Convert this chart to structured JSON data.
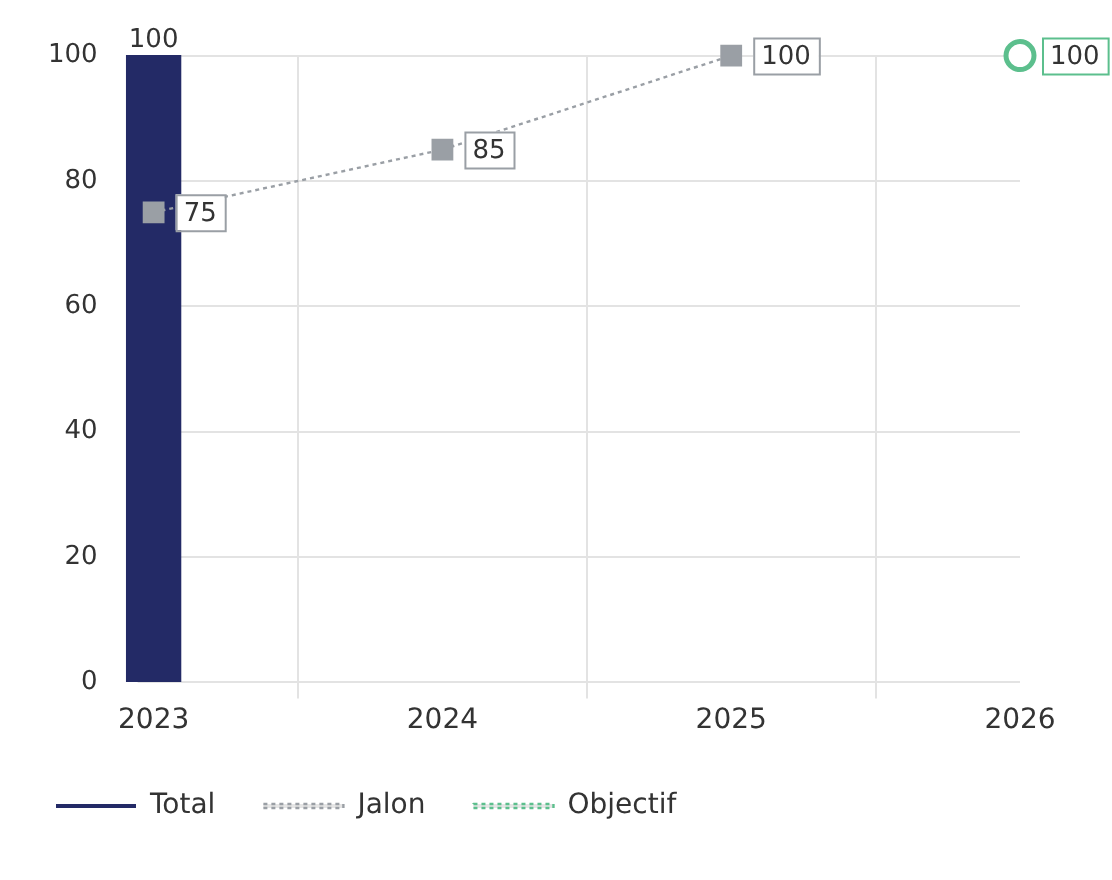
{
  "chart_data": {
    "type": "bar",
    "categories": [
      "2023",
      "2024",
      "2025",
      "2026"
    ],
    "series": [
      {
        "name": "Total",
        "color": "#232a66",
        "values": [
          100,
          null,
          null,
          null
        ]
      },
      {
        "name": "Jalon",
        "type": "line",
        "color": "#9a9fa5",
        "marker": "square",
        "line_style": "dotted",
        "values": [
          75,
          85,
          100,
          null
        ]
      },
      {
        "name": "Objectif",
        "type": "line",
        "color": "#5cbf8d",
        "marker": "circle",
        "line_style": "dotted",
        "values": [
          null,
          null,
          null,
          100
        ]
      }
    ],
    "ylim": [
      0,
      100
    ],
    "yticks": [
      0,
      20,
      40,
      60,
      80,
      100
    ],
    "grid": true,
    "legend": "bottom left",
    "data_labels": true
  }
}
